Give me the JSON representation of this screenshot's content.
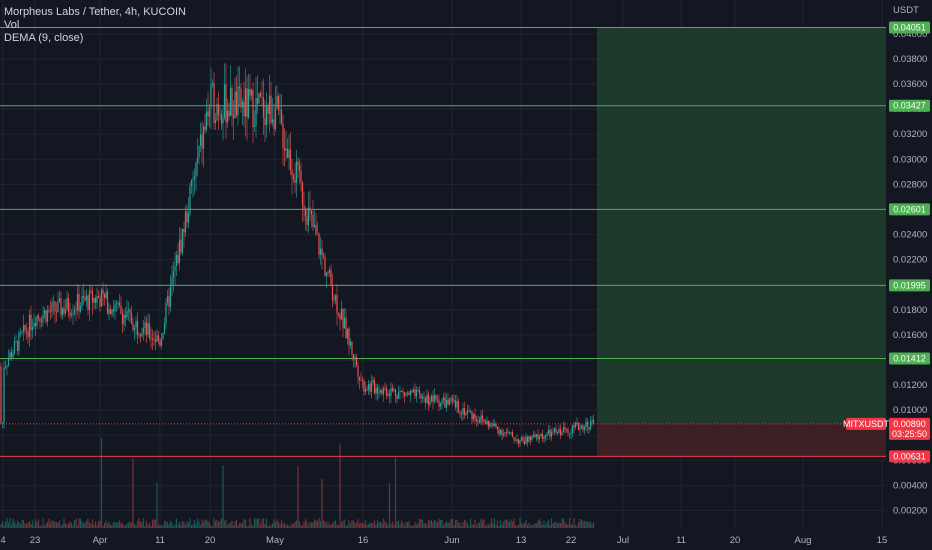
{
  "legend": {
    "symbol_line": "Morpheus Labs / Tether, 4h, KUCOIN",
    "vol": "Vol",
    "dema": "DEMA (9, close)"
  },
  "chart_data": {
    "type": "candlestick",
    "currency": "USDT",
    "ylim": [
      0.0006,
      0.0427
    ],
    "price_ticks": [
      "0.00200",
      "0.00400",
      "0.00600",
      "0.00800",
      "0.01000",
      "0.01200",
      "0.01400",
      "0.01600",
      "0.01800",
      "0.02000",
      "0.02200",
      "0.02400",
      "0.02600",
      "0.02800",
      "0.03000",
      "0.03200",
      "0.03400",
      "0.03600",
      "0.03800",
      "0.04000"
    ],
    "x_labels": [
      "4",
      "23",
      "Apr",
      "11",
      "20",
      "May",
      "16",
      "Jun",
      "13",
      "22",
      "Jul",
      "11",
      "20",
      "Aug",
      "15"
    ],
    "horizontal_levels": [
      {
        "value": 0.04051,
        "label": "0.04051"
      },
      {
        "value": 0.03427,
        "label": "0.03427"
      },
      {
        "value": 0.02601,
        "label": "0.02601"
      },
      {
        "value": 0.01995,
        "label": "0.01995"
      },
      {
        "value": 0.01412,
        "label": "0.01412"
      }
    ],
    "stop_level": {
      "value": 0.00631,
      "label": "0.00631"
    },
    "last_price": {
      "symbol": "MITXUSDT",
      "value": 0.0089,
      "label": "0.00890",
      "countdown": "03:25:50"
    },
    "position": {
      "entry": 0.0089,
      "target": 0.04051,
      "stop": 0.00631
    },
    "price_path": [
      [
        "4",
        0.0135
      ],
      [
        "23",
        0.0175
      ],
      [
        "Apr",
        0.019
      ],
      [
        "11",
        0.0155
      ],
      [
        "20",
        0.0345
      ],
      [
        "May",
        0.034
      ],
      [
        "16",
        0.012
      ],
      [
        "Jun",
        0.0105
      ],
      [
        "13",
        0.0075
      ],
      [
        "22",
        0.009
      ]
    ],
    "colors": {
      "background": "#131722",
      "grid": "#1f2433",
      "up": "#26a69a",
      "down": "#ef5350",
      "level_line": "#4caf50",
      "level_tag": "#4caf50",
      "stop_tag": "#f23645",
      "profit_zone": "#1e3a2c",
      "loss_zone": "#3d1f26",
      "last_price_tag": "#f23645"
    }
  }
}
